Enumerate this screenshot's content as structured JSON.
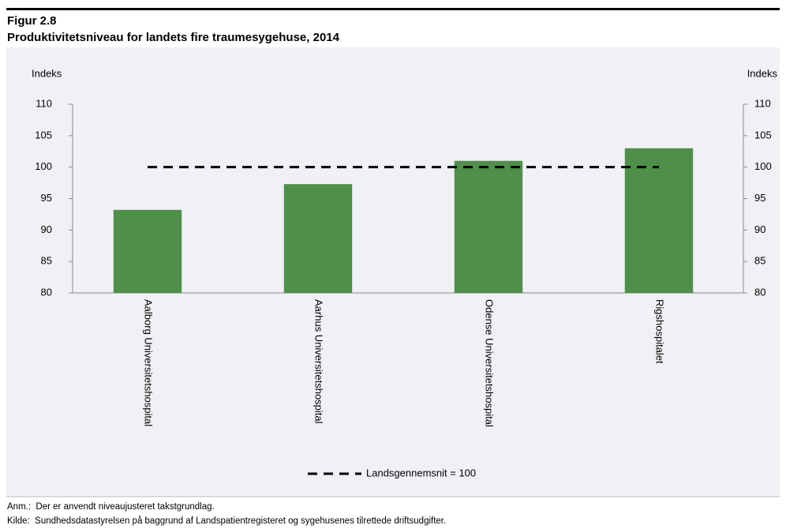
{
  "chart_data": {
    "type": "bar",
    "figure_label": "Figur 2.8",
    "title": "Produktivitetsniveau for landets fire traumesygehuse, 2014",
    "y_label": "Indeks",
    "y2_label": "Indeks",
    "categories": [
      "Aalborg Universitetshospital",
      "Aarhus Universitetshospital",
      "Odense Universitetshospital",
      "Rigshospitalet"
    ],
    "values": [
      93.2,
      97.3,
      101,
      103
    ],
    "color": "#4f8f4b",
    "lines": [
      {
        "name": "Landsgennemsnit = 100",
        "color": "#000000",
        "values": [
          100,
          100,
          100,
          100
        ]
      }
    ],
    "ylim": [
      80,
      110
    ],
    "yticks": [
      80,
      85,
      90,
      95,
      100,
      105,
      110
    ],
    "y2lim": [
      80,
      110
    ],
    "y2ticks": [
      80,
      85,
      90,
      95,
      100,
      105,
      110
    ],
    "legend": "bottom",
    "notes": [
      "Anm.:  Der er anvendt niveaujusteret takstgrundlag.",
      "Kilde:  Sundhedsdatastyrelsen på baggrund af Landspatientregisteret og sygehusenes tilrettede driftsudgifter."
    ]
  }
}
